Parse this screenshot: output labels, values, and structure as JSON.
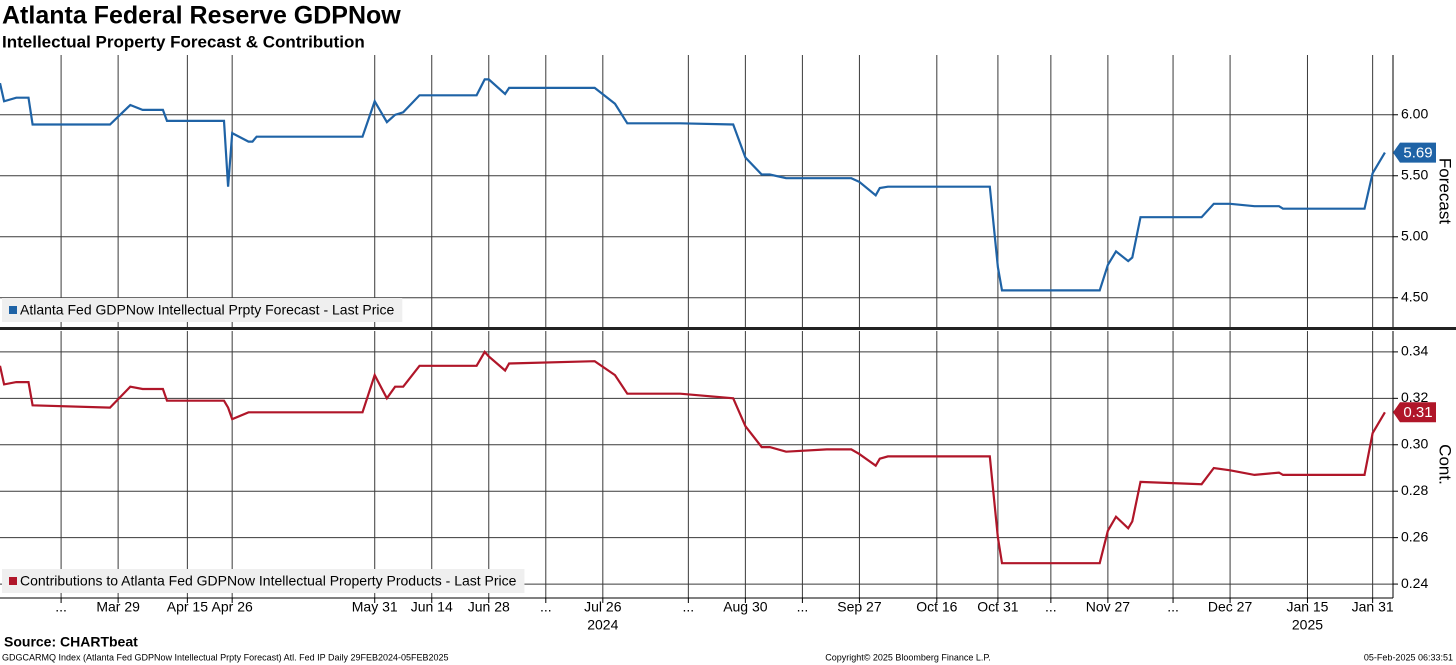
{
  "title": "Atlanta Federal Reserve GDPNow",
  "subtitle": "Intellectual Property Forecast & Contribution",
  "source": "Source: CHARTbeat",
  "footer": {
    "left": "GDGCARMQ Index (Atlanta Fed GDPNow Intellectual Prpty Forecast) Atl. Fed IP  Daily 29FEB2024-05FEB2025",
    "center": "Copyright© 2025 Bloomberg Finance L.P.",
    "right": "05-Feb-2025 06:33:51"
  },
  "chart_data": [
    {
      "type": "line",
      "y_label": "Forecast",
      "legend": "lower left",
      "grid": true,
      "xlim": [
        "2024-02-29",
        "2025-02-05"
      ],
      "ylim": [
        4.26,
        6.49
      ],
      "yticks": [
        {
          "value": 4.5,
          "label": "4.50"
        },
        {
          "value": 5,
          "label": "5.00"
        },
        {
          "value": 5.5,
          "label": "5.50"
        },
        {
          "value": 6,
          "label": "6.00"
        }
      ],
      "x": [
        "2024-02-29",
        "2024-03-01",
        "2024-03-04",
        "2024-03-07",
        "2024-03-08",
        "2024-03-27",
        "2024-04-01",
        "2024-04-04",
        "2024-04-09",
        "2024-04-10",
        "2024-04-24",
        "2024-04-25",
        "2024-04-26",
        "2024-04-30",
        "2024-05-01",
        "2024-05-02",
        "2024-05-28",
        "2024-05-31",
        "2024-06-03",
        "2024-06-05",
        "2024-06-07",
        "2024-06-11",
        "2024-06-25",
        "2024-06-27",
        "2024-06-28",
        "2024-07-02",
        "2024-07-03",
        "2024-07-24",
        "2024-07-29",
        "2024-08-01",
        "2024-08-14",
        "2024-08-27",
        "2024-08-30",
        "2024-09-03",
        "2024-09-05",
        "2024-09-09",
        "2024-09-19",
        "2024-09-25",
        "2024-09-27",
        "2024-10-01",
        "2024-10-02",
        "2024-10-04",
        "2024-10-29",
        "2024-10-31",
        "2024-11-01",
        "2024-11-25",
        "2024-11-27",
        "2024-11-29",
        "2024-12-02",
        "2024-12-03",
        "2024-12-05",
        "2024-12-20",
        "2024-12-23",
        "2024-12-27",
        "2025-01-02",
        "2025-01-08",
        "2025-01-09",
        "2025-01-29",
        "2025-01-31",
        "2025-02-03"
      ],
      "series": [
        {
          "name": "Atlanta Fed GDPNow Intellectual Prpty Forecast - Last Price",
          "color": "#1f63a6",
          "values": [
            6.26,
            6.11,
            6.14,
            6.14,
            5.92,
            5.92,
            6.08,
            6.04,
            6.04,
            5.95,
            5.95,
            5.41,
            5.85,
            5.78,
            5.78,
            5.82,
            5.82,
            6.11,
            5.94,
            6.0,
            6.02,
            6.16,
            6.16,
            6.29,
            6.29,
            6.17,
            6.22,
            6.22,
            6.09,
            5.93,
            5.93,
            5.92,
            5.65,
            5.51,
            5.51,
            5.48,
            5.48,
            5.48,
            5.45,
            5.34,
            5.4,
            5.41,
            5.41,
            4.75,
            4.56,
            4.56,
            4.77,
            4.88,
            4.8,
            4.83,
            5.16,
            5.16,
            5.27,
            5.27,
            5.25,
            5.25,
            5.23,
            5.23,
            5.52,
            5.69
          ]
        }
      ]
    },
    {
      "type": "line",
      "y_label": "Cont.",
      "legend": "lower left",
      "grid": true,
      "xlim": [
        "2024-02-29",
        "2025-02-05"
      ],
      "ylim": [
        0.234,
        0.349
      ],
      "yticks": [
        0.24,
        0.26,
        0.28,
        {
          "value": 0.3,
          "label": "0.30"
        },
        0.32,
        0.34
      ],
      "xticks": [
        {
          "value": "2024-03-15",
          "label": "..."
        },
        {
          "value": "2024-03-29",
          "label": "Mar 29"
        },
        {
          "value": "2024-04-15",
          "label": "Apr 15"
        },
        {
          "value": "2024-04-26",
          "label": "Apr 26"
        },
        {
          "value": "2024-05-31",
          "label": "May 31"
        },
        {
          "value": "2024-06-14",
          "label": "Jun 14"
        },
        {
          "value": "2024-06-28",
          "label": "Jun 28"
        },
        {
          "value": "2024-07-12",
          "label": "..."
        },
        {
          "value": "2024-07-26",
          "label": "Jul 26"
        },
        {
          "value": "2024-08-16",
          "label": "..."
        },
        {
          "value": "2024-08-30",
          "label": "Aug 30"
        },
        {
          "value": "2024-09-13",
          "label": "..."
        },
        {
          "value": "2024-09-27",
          "label": "Sep 27"
        },
        {
          "value": "2024-10-16",
          "label": "Oct 16"
        },
        {
          "value": "2024-10-31",
          "label": "Oct 31"
        },
        {
          "value": "2024-11-13",
          "label": "..."
        },
        {
          "value": "2024-11-27",
          "label": "Nov 27"
        },
        {
          "value": "2024-12-13",
          "label": "..."
        },
        {
          "value": "2024-12-27",
          "label": "Dec 27"
        },
        {
          "value": "2025-01-15",
          "label": "Jan 15"
        },
        {
          "value": "2025-01-31",
          "label": "Jan 31"
        }
      ],
      "year_ticks": [
        {
          "value": "2024-07-26",
          "label": "2024"
        },
        {
          "value": "2025-01-15",
          "label": "2025"
        }
      ],
      "x": [
        "2024-02-29",
        "2024-03-01",
        "2024-03-04",
        "2024-03-07",
        "2024-03-08",
        "2024-03-27",
        "2024-04-01",
        "2024-04-04",
        "2024-04-09",
        "2024-04-10",
        "2024-04-24",
        "2024-04-25",
        "2024-04-26",
        "2024-04-30",
        "2024-05-01",
        "2024-05-02",
        "2024-05-28",
        "2024-05-31",
        "2024-06-03",
        "2024-06-05",
        "2024-06-07",
        "2024-06-11",
        "2024-06-25",
        "2024-06-27",
        "2024-06-28",
        "2024-07-02",
        "2024-07-03",
        "2024-07-24",
        "2024-07-29",
        "2024-08-01",
        "2024-08-14",
        "2024-08-27",
        "2024-08-30",
        "2024-09-03",
        "2024-09-05",
        "2024-09-09",
        "2024-09-19",
        "2024-09-25",
        "2024-09-27",
        "2024-10-01",
        "2024-10-02",
        "2024-10-04",
        "2024-10-29",
        "2024-10-31",
        "2024-11-01",
        "2024-11-25",
        "2024-11-27",
        "2024-11-29",
        "2024-12-02",
        "2024-12-03",
        "2024-12-05",
        "2024-12-20",
        "2024-12-23",
        "2024-12-27",
        "2025-01-02",
        "2025-01-08",
        "2025-01-09",
        "2025-01-29",
        "2025-01-31",
        "2025-02-03"
      ],
      "series": [
        {
          "name": "Contributions to Atlanta Fed GDPNow Intellectual Property Products - Last Price",
          "color": "#b01629",
          "values": [
            0.334,
            0.326,
            0.327,
            0.327,
            0.317,
            0.316,
            0.325,
            0.324,
            0.324,
            0.319,
            0.319,
            0.316,
            0.311,
            0.314,
            0.314,
            0.314,
            0.314,
            0.33,
            0.32,
            0.325,
            0.325,
            0.334,
            0.334,
            0.34,
            0.338,
            0.332,
            0.335,
            0.336,
            0.33,
            0.322,
            0.322,
            0.32,
            0.308,
            0.299,
            0.299,
            0.297,
            0.298,
            0.298,
            0.296,
            0.291,
            0.294,
            0.295,
            0.295,
            0.26,
            0.249,
            0.249,
            0.263,
            0.269,
            0.264,
            0.267,
            0.284,
            0.283,
            0.29,
            0.289,
            0.287,
            0.288,
            0.287,
            0.287,
            0.305,
            0.314
          ],
          "value_labels": [
            null,
            null,
            null,
            null,
            null,
            null,
            null,
            null,
            null,
            null,
            null,
            null,
            null,
            null,
            null,
            null,
            null,
            null,
            null,
            null,
            null,
            null,
            null,
            null,
            null,
            null,
            null,
            null,
            null,
            null,
            null,
            null,
            null,
            null,
            null,
            null,
            null,
            null,
            null,
            null,
            null,
            null,
            null,
            null,
            null,
            null,
            null,
            null,
            null,
            null,
            null,
            null,
            null,
            null,
            null,
            null,
            null,
            null,
            null,
            "0.31"
          ]
        }
      ]
    }
  ]
}
